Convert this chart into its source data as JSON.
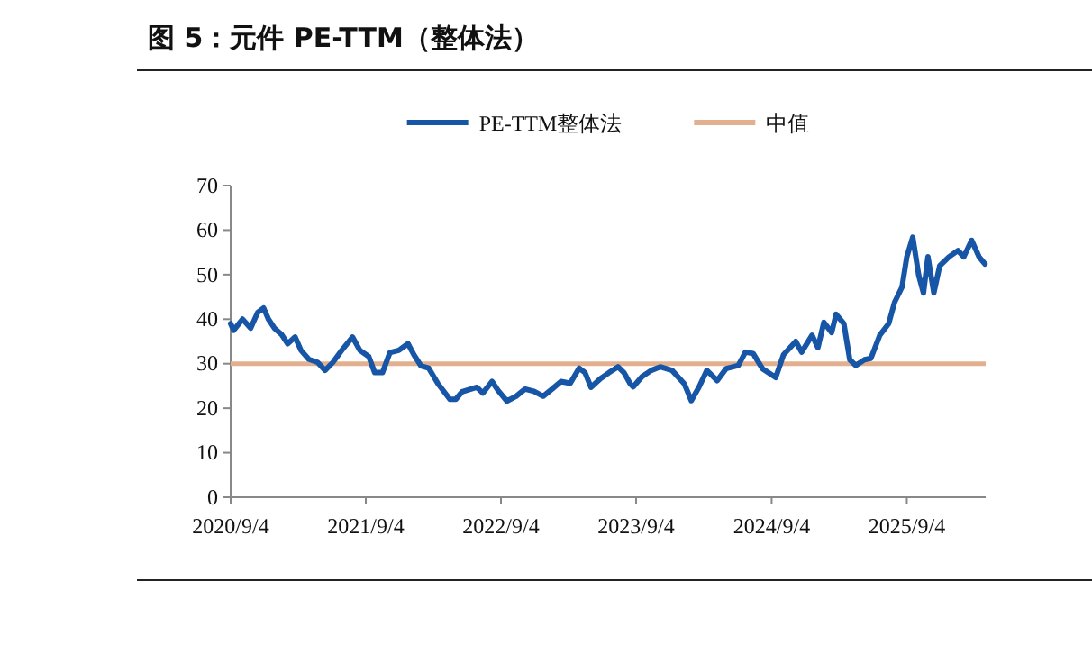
{
  "chart_data": {
    "type": "line",
    "title": "图 5：元件 PE-TTM（整体法）",
    "x": [
      "2020-09-04",
      "2020-09-12",
      "2020-10-06",
      "2020-10-28",
      "2020-11-16",
      "2020-12-02",
      "2020-12-15",
      "2020-12-31",
      "2021-01-20",
      "2021-02-05",
      "2021-02-25",
      "2021-03-13",
      "2021-04-03",
      "2021-04-27",
      "2021-05-17",
      "2021-06-07",
      "2021-07-01",
      "2021-07-30",
      "2021-08-19",
      "2021-09-12",
      "2021-09-28",
      "2021-10-19",
      "2021-11-08",
      "2021-12-02",
      "2021-12-27",
      "2022-01-12",
      "2022-01-31",
      "2022-02-21",
      "2022-03-18",
      "2022-04-19",
      "2022-05-05",
      "2022-05-22",
      "2022-06-15",
      "2022-07-01",
      "2022-07-17",
      "2022-08-11",
      "2022-08-27",
      "2022-09-20",
      "2022-10-15",
      "2022-11-08",
      "2022-12-02",
      "2022-12-27",
      "2023-01-20",
      "2023-02-13",
      "2023-03-10",
      "2023-04-03",
      "2023-04-19",
      "2023-05-05",
      "2023-05-30",
      "2023-06-23",
      "2023-07-17",
      "2023-08-02",
      "2023-08-19",
      "2023-08-27",
      "2023-09-20",
      "2023-10-15",
      "2023-11-08",
      "2023-12-10",
      "2024-01-12",
      "2024-01-31",
      "2024-02-21",
      "2024-03-13",
      "2024-04-10",
      "2024-05-04",
      "2024-06-06",
      "2024-06-25",
      "2024-07-16",
      "2024-08-10",
      "2024-09-15",
      "2024-10-06",
      "2024-11-08",
      "2024-11-24",
      "2024-12-22",
      "2025-01-07",
      "2025-01-23",
      "2025-02-13",
      "2025-02-25",
      "2025-03-18",
      "2025-04-03",
      "2025-04-19",
      "2025-05-13",
      "2025-05-30",
      "2025-06-23",
      "2025-07-17",
      "2025-08-02",
      "2025-08-22",
      "2025-09-04",
      "2025-09-20",
      "2025-10-06",
      "2025-10-19",
      "2025-10-31",
      "2025-11-16",
      "2025-12-02",
      "2025-12-27",
      "2026-01-20",
      "2026-02-05",
      "2026-02-26",
      "2026-03-18",
      "2026-04-03"
    ],
    "series": [
      {
        "name": "PE-TTM整体法",
        "color": "#1756a6",
        "values": [
          39,
          37.5,
          40,
          38,
          41.5,
          42.5,
          40,
          38,
          36.5,
          34.5,
          36,
          33,
          31,
          30.3,
          28.5,
          30.3,
          33,
          36,
          33,
          31.6,
          28,
          28,
          32.5,
          33,
          34.5,
          32,
          29.5,
          29,
          25.5,
          22,
          22,
          23.7,
          24.3,
          24.7,
          23.4,
          26,
          24,
          21.6,
          22.7,
          24.3,
          23.8,
          22.7,
          24.3,
          26,
          25.6,
          29,
          28,
          24.7,
          26.6,
          28,
          29.3,
          28,
          25.5,
          24.8,
          27.1,
          28.5,
          29.3,
          28.5,
          25.5,
          21.7,
          24.8,
          28.5,
          26.2,
          28.9,
          29.6,
          32.6,
          32.3,
          28.9,
          26.9,
          32,
          35,
          32.6,
          36.4,
          33.6,
          39.3,
          37,
          41.1,
          39,
          30.9,
          29.6,
          30.9,
          31.2,
          36.4,
          39,
          43.8,
          47.2,
          54,
          58.4,
          49.9,
          45.9,
          54,
          45.9,
          52,
          54,
          55.4,
          54,
          57.7,
          54,
          52.4
        ]
      }
    ],
    "ref_lines": [
      {
        "axis": "y",
        "value": 30,
        "label": "中值",
        "color": "#e3b08f"
      }
    ],
    "xlim": [
      "2020-09-04",
      "2026-04-05"
    ],
    "xticks": [
      {
        "value": "2020-09-04",
        "label": "2020/9/4"
      },
      {
        "value": "2021-09-04",
        "label": "2021/9/4"
      },
      {
        "value": "2022-09-04",
        "label": "2022/9/4"
      },
      {
        "value": "2023-09-04",
        "label": "2023/9/4"
      },
      {
        "value": "2024-09-04",
        "label": "2024/9/4"
      },
      {
        "value": "2025-09-04",
        "label": "2025/9/4"
      }
    ],
    "ylim": [
      0,
      70
    ],
    "yticks": [
      0,
      10,
      20,
      30,
      40,
      50,
      60,
      70
    ],
    "legend": "top",
    "grid": false,
    "marker": "none",
    "line_style": "solid"
  }
}
